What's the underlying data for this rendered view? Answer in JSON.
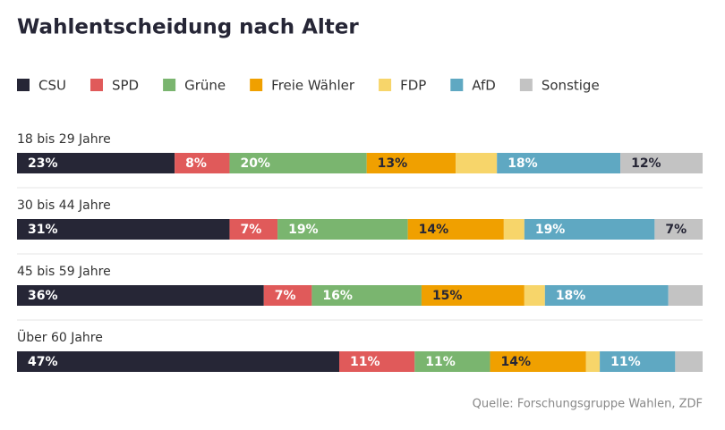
{
  "chart_data": {
    "type": "stacked-bar",
    "title": "Wahlentscheidung nach Alter",
    "categories": [
      "18 bis 29 Jahre",
      "30 bis 44 Jahre",
      "45 bis 59 Jahre",
      "Über 60 Jahre"
    ],
    "xlim": [
      0,
      100
    ],
    "series": [
      {
        "name": "CSU",
        "color": "#262636",
        "label_color": "#ffffff",
        "values": [
          23,
          31,
          36,
          47
        ],
        "value_labels": [
          "23%",
          "31%",
          "36%",
          "47%"
        ]
      },
      {
        "name": "SPD",
        "color": "#e05a5a",
        "label_color": "#ffffff",
        "values": [
          8,
          7,
          7,
          11
        ],
        "value_labels": [
          "8%",
          "7%",
          "7%",
          "11%"
        ]
      },
      {
        "name": "Grüne",
        "color": "#7ab56f",
        "label_color": "#ffffff",
        "values": [
          20,
          19,
          16,
          11
        ],
        "value_labels": [
          "20%",
          "19%",
          "16%",
          "11%"
        ]
      },
      {
        "name": "Freie Wähler",
        "color": "#f0a000",
        "label_color": "#262636",
        "values": [
          13,
          14,
          15,
          14
        ],
        "value_labels": [
          "13%",
          "14%",
          "15%",
          "14%"
        ]
      },
      {
        "name": "FDP",
        "color": "#f7d56a",
        "label_color": "#262636",
        "values": [
          6,
          3,
          3,
          2
        ],
        "value_labels": [
          null,
          null,
          null,
          null
        ]
      },
      {
        "name": "AfD",
        "color": "#5fa8c2",
        "label_color": "#ffffff",
        "values": [
          18,
          19,
          18,
          11
        ],
        "value_labels": [
          "18%",
          "19%",
          "18%",
          "11%"
        ]
      },
      {
        "name": "Sonstige",
        "color": "#c3c3c3",
        "label_color": "#262636",
        "values": [
          12,
          7,
          5,
          4
        ],
        "value_labels": [
          "12%",
          "7%",
          null,
          null
        ]
      }
    ],
    "source": "Quelle: Forschungsgruppe Wahlen, ZDF"
  }
}
